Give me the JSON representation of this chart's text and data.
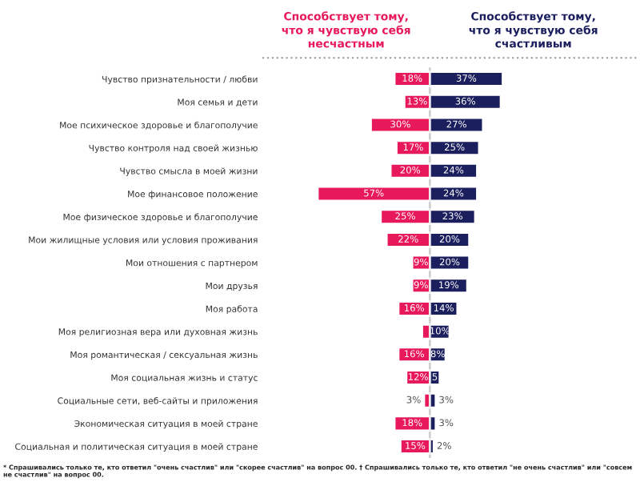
{
  "chart_data": [
    {
      "type": "bar",
      "orientation": "horizontal",
      "title": "Способствует тому,\nчто я чувствую себя\nнесчастным",
      "categories": [
        "Чувство признательности / любви",
        "Моя семья и дети",
        "Мое психическое здоровье и благополучие",
        "Чувство контроля над своей жизнью",
        "Чувство смысла в моей жизни",
        "Мое финансовое положение",
        "Мое физическое здоровье и благополучие",
        "Мои жилищные условия или условия проживания",
        "Мои отношения с партнером",
        "Мои друзья",
        "Моя работа",
        "Моя религиозная вера или духовная жизнь",
        "Моя романтическая / сексуальная жизнь",
        "Моя социальная жизнь и статус",
        "Социальные сети, веб-сайты и приложения",
        "Экономическая ситуация в моей стране",
        "Социальная и политическая ситуация в моей стране"
      ],
      "series": [
        {
          "color": "#e8195a",
          "values": [
            18,
            13,
            30,
            17,
            20,
            57,
            25,
            22,
            9,
            9,
            16,
            4,
            16,
            12,
            3,
            18,
            15
          ],
          "value_labels": [
            "18%",
            "13%",
            "30%",
            "17%",
            "20%",
            "57%",
            "25%",
            "22%",
            "9%",
            "9%",
            "16%",
            null,
            "16%",
            "12%",
            "3%",
            "18%",
            "15%"
          ]
        }
      ],
      "xlim": [
        85,
        0
      ],
      "tick_labels": "y",
      "annotations": [
        "* Спрашивались только те, кто ответил \"очень счастлив\" или \"скорее счастлив\" на вопрос 00. † Спрашивались только те, кто ответил \"не очень счастлив\" или \"совсем не счастлив\" на вопрос 00."
      ]
    },
    {
      "type": "bar",
      "orientation": "horizontal",
      "title": "Способствует тому,\nчто я чувствую себя\nсчастливым",
      "categories": [
        null,
        null,
        null,
        null,
        null,
        null,
        null,
        null,
        null,
        null,
        null,
        null,
        null,
        null,
        null,
        null,
        null
      ],
      "series": [
        {
          "color": "#1b1f5e",
          "values": [
            37,
            36,
            27,
            25,
            24,
            24,
            23,
            20,
            20,
            19,
            14,
            10,
            8,
            5,
            3,
            3,
            2
          ],
          "value_labels": [
            "37%",
            "36%",
            "27%",
            "25%",
            "24%",
            "24%",
            "23%",
            "20%",
            "20%",
            "19%",
            "14%",
            "10%",
            "8%",
            "5",
            "3%",
            "3%",
            "2%"
          ]
        }
      ],
      "xlim": [
        0,
        105
      ],
      "tick_labels": false
    }
  ]
}
